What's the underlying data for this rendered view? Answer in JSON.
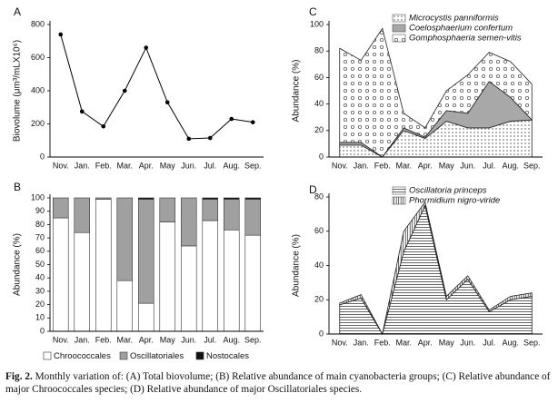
{
  "chart_data": [
    {
      "type": "line",
      "label": "A",
      "ylabel": "Biovolume (μm³/mLX10⁶)",
      "categories": [
        "Nov.",
        "Jan.",
        "Feb.",
        "Mar.",
        "Apr.",
        "May",
        "Jun.",
        "Jul.",
        "Aug.",
        "Sep."
      ],
      "values": [
        740,
        275,
        185,
        400,
        660,
        330,
        110,
        115,
        230,
        210
      ],
      "color": "#000000",
      "ylim": [
        0,
        800
      ],
      "yticks": [
        0,
        200,
        400,
        600,
        800
      ]
    },
    {
      "type": "stacked_bar",
      "label": "B",
      "ylabel": "Abundance (%)",
      "categories": [
        "Nov.",
        "Jan.",
        "Feb.",
        "Mar.",
        "Apr.",
        "May",
        "Jun.",
        "Jul.",
        "Aug.",
        "Sep."
      ],
      "series": [
        {
          "name": "Chroococcales",
          "color": "#ffffff",
          "values": [
            85,
            74,
            99,
            38,
            21,
            82,
            64,
            83,
            76,
            72
          ]
        },
        {
          "name": "Oscillatoriales",
          "color": "#a0a0a0",
          "values": [
            15,
            26,
            1,
            62,
            78,
            18,
            36,
            16,
            23,
            27
          ]
        },
        {
          "name": "Nostocales",
          "color": "#111111",
          "values": [
            0,
            0,
            0,
            0,
            1,
            0,
            0,
            1,
            1,
            1
          ]
        }
      ],
      "ylim": [
        0,
        100
      ],
      "yticks": [
        0,
        10,
        20,
        30,
        40,
        50,
        60,
        70,
        80,
        90,
        100
      ],
      "legend": "bottom"
    },
    {
      "type": "stacked_area",
      "label": "C",
      "ylabel": "Abundance (%)",
      "categories": [
        "Nov.",
        "Jan.",
        "Feb.",
        "Mar.",
        "Apr.",
        "May",
        "Jun.",
        "Jul.",
        "Aug.",
        "Sep."
      ],
      "series": [
        {
          "name": "Microcystis panniformis",
          "color": "#ffffff",
          "pattern": "dots",
          "values": [
            9,
            9,
            0,
            20,
            14,
            27,
            22,
            22,
            27,
            28
          ]
        },
        {
          "name": "Coelosphaerium confertum",
          "color": "#a8a8a8",
          "values": [
            2,
            2,
            0,
            2,
            1,
            8,
            11,
            35,
            18,
            0
          ]
        },
        {
          "name": "Gomphosphaeria semen-vitis",
          "color": "#ffffff",
          "pattern": "circles",
          "values": [
            71,
            62,
            97,
            11,
            7,
            15,
            29,
            22,
            27,
            27
          ]
        }
      ],
      "ylim": [
        0,
        100
      ],
      "yticks": [
        0,
        20,
        40,
        60,
        80,
        100
      ],
      "legend": "top-left"
    },
    {
      "type": "stacked_area",
      "label": "D",
      "ylabel": "Abundance (%)",
      "categories": [
        "Nov.",
        "Jan.",
        "Feb.",
        "Mar.",
        "Apr.",
        "May",
        "Jun.",
        "Jul.",
        "Aug.",
        "Sep."
      ],
      "series": [
        {
          "name": "Oscillatoria princeps",
          "color": "#ffffff",
          "pattern": "hlines",
          "values": [
            17,
            21,
            0,
            48,
            75,
            20,
            32,
            13,
            20,
            22
          ]
        },
        {
          "name": "Phormidium nigro-viride",
          "color": "#ffffff",
          "pattern": "vlines",
          "values": [
            1,
            2,
            0,
            12,
            2,
            2,
            2,
            1,
            2,
            2
          ]
        }
      ],
      "ylim": [
        0,
        80
      ],
      "yticks": [
        0,
        20,
        40,
        60,
        80
      ],
      "legend": "top-left"
    }
  ],
  "caption": {
    "label": "Fig. 2.",
    "text": "Monthly variation of: (A) Total biovolume; (B) Relative abundance of main cyanobacteria groups; (C) Relative abundance of major Chroococcales species; (D) Relative abundance of major Oscillatoriales species."
  }
}
